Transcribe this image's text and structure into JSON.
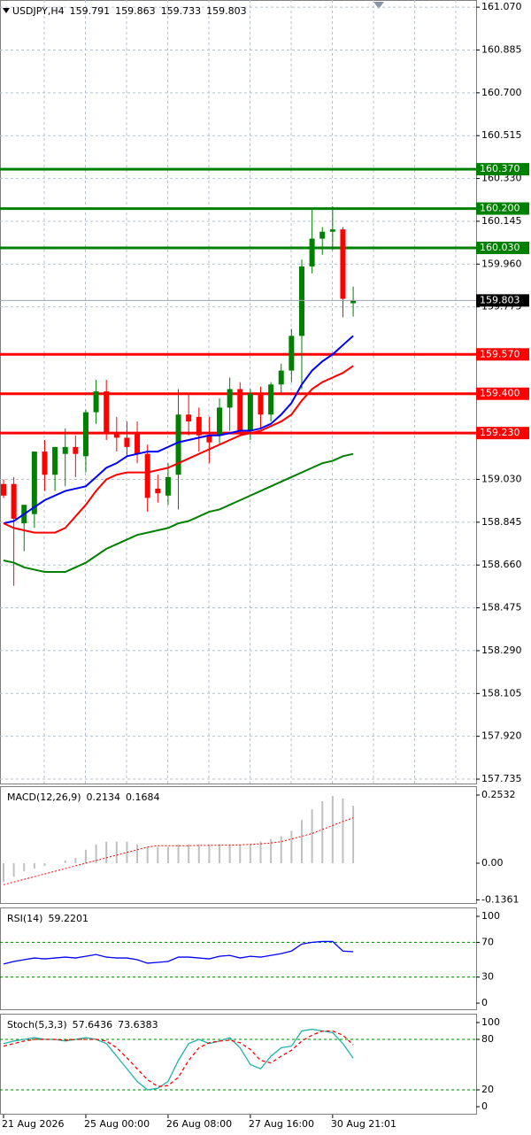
{
  "chart_data": [
    {
      "type": "candlestick",
      "title": "USDJPY,H4",
      "categories": [
        "21 Aug 2026",
        null,
        null,
        null,
        null,
        null,
        null,
        null,
        "25 Aug 00:00",
        null,
        null,
        null,
        null,
        null,
        null,
        null,
        "26 Aug 08:00",
        null,
        null,
        null,
        null,
        null,
        null,
        null,
        "27 Aug 16:00",
        null,
        null,
        null,
        null,
        null,
        null,
        null,
        "30 Aug 21:01",
        null,
        null
      ],
      "open": [
        159.01,
        159.01,
        158.84,
        158.88,
        159.15,
        159.05,
        159.14,
        159.17,
        159.13,
        159.32,
        159.41,
        159.23,
        159.21,
        159.23,
        159.14,
        158.99,
        158.96,
        159.05,
        159.31,
        159.3,
        159.22,
        159.22,
        159.34,
        159.42,
        159.24,
        159.4,
        159.31,
        159.44,
        159.5,
        159.65,
        159.95,
        160.07,
        160.1,
        160.11,
        159.791
      ],
      "high": [
        159.03,
        159.04,
        158.92,
        159.15,
        159.2,
        159.17,
        159.25,
        159.22,
        159.33,
        159.46,
        159.46,
        159.3,
        159.28,
        159.28,
        159.18,
        159.05,
        159.1,
        159.42,
        159.4,
        159.34,
        159.3,
        159.38,
        159.47,
        159.45,
        159.42,
        159.43,
        159.45,
        159.53,
        159.68,
        159.98,
        160.2,
        160.12,
        160.21,
        160.12,
        159.863
      ],
      "low": [
        158.95,
        158.57,
        158.72,
        158.82,
        158.98,
        158.98,
        159.0,
        159.04,
        159.06,
        159.27,
        159.2,
        159.15,
        159.13,
        159.1,
        158.89,
        158.93,
        158.92,
        158.9,
        159.22,
        159.15,
        159.1,
        159.18,
        159.24,
        159.22,
        159.2,
        159.25,
        159.28,
        159.4,
        159.45,
        159.42,
        159.92,
        160.0,
        160.02,
        159.73,
        159.733
      ],
      "close": [
        158.96,
        158.86,
        158.92,
        159.15,
        159.05,
        159.17,
        159.17,
        159.14,
        159.32,
        159.41,
        159.23,
        159.21,
        159.17,
        159.14,
        158.95,
        158.97,
        159.04,
        159.31,
        159.28,
        159.22,
        159.19,
        159.34,
        159.42,
        159.24,
        159.4,
        159.31,
        159.44,
        159.5,
        159.65,
        159.95,
        160.07,
        160.1,
        160.11,
        159.81,
        159.803
      ],
      "up_color": "#008000",
      "down_color": "#ff0000",
      "series": [
        {
          "color": "#0000ff",
          "values": [
            158.84,
            158.85,
            158.88,
            158.91,
            158.94,
            158.96,
            158.98,
            158.99,
            159.0,
            159.04,
            159.08,
            159.1,
            159.13,
            159.14,
            159.15,
            159.15,
            159.17,
            159.19,
            159.2,
            159.21,
            159.22,
            159.22,
            159.23,
            159.24,
            159.24,
            159.25,
            159.27,
            159.31,
            159.36,
            159.44,
            159.5,
            159.54,
            159.57,
            159.61,
            159.65
          ]
        },
        {
          "color": "#ff0000",
          "values": [
            158.84,
            158.82,
            158.81,
            158.8,
            158.8,
            158.8,
            158.82,
            158.87,
            158.92,
            158.98,
            159.03,
            159.05,
            159.06,
            159.06,
            159.06,
            159.07,
            159.08,
            159.1,
            159.12,
            159.14,
            159.16,
            159.18,
            159.2,
            159.22,
            159.23,
            159.24,
            159.26,
            159.28,
            159.31,
            159.37,
            159.42,
            159.45,
            159.47,
            159.49,
            159.52
          ]
        },
        {
          "color": "#008000",
          "values": [
            158.68,
            158.67,
            158.65,
            158.64,
            158.63,
            158.63,
            158.63,
            158.65,
            158.67,
            158.7,
            158.73,
            158.75,
            158.77,
            158.79,
            158.8,
            158.81,
            158.82,
            158.84,
            158.85,
            158.87,
            158.89,
            158.9,
            158.92,
            158.94,
            158.96,
            158.98,
            159.0,
            159.02,
            159.04,
            159.06,
            159.08,
            159.1,
            159.11,
            159.13,
            159.14
          ]
        }
      ],
      "levels": [
        {
          "value": 160.37,
          "label": "160.370",
          "color": "#008000"
        },
        {
          "value": 160.2,
          "label": "160.200",
          "color": "#008000"
        },
        {
          "value": 160.03,
          "label": "160.030",
          "color": "#008000"
        },
        {
          "value": 159.57,
          "label": "159.570",
          "color": "#ff0000"
        },
        {
          "value": 159.4,
          "label": "159.400",
          "color": "#ff0000"
        },
        {
          "value": 159.23,
          "label": "159.230",
          "color": "#ff0000"
        }
      ],
      "ylim": [
        157.716,
        161.101
      ],
      "yticks": [
        {
          "value": 161.07,
          "label": "161.070"
        },
        160.885,
        {
          "value": 160.7,
          "label": "160.700"
        },
        160.515,
        {
          "value": 160.33,
          "label": "160.330"
        },
        160.145,
        {
          "value": 159.96,
          "label": "159.960"
        },
        159.775,
        {
          "value": 159.03,
          "label": "159.030"
        },
        158.845,
        {
          "value": 158.66,
          "label": "158.660"
        },
        158.475,
        {
          "value": 158.29,
          "label": "158.290"
        },
        158.105,
        {
          "value": 157.92,
          "label": "157.920"
        },
        157.735
      ],
      "grid": true
    },
    {
      "type": "macd",
      "title": "MACD(12,26,9)",
      "series": [
        {
          "color": "#c0c0c0",
          "values": [
            -0.07,
            -0.05,
            -0.03,
            -0.02,
            -0.01,
            0.0,
            0.01,
            0.02,
            0.05,
            0.07,
            0.08,
            0.08,
            0.08,
            0.07,
            0.06,
            0.06,
            0.06,
            0.07,
            0.07,
            0.07,
            0.07,
            0.07,
            0.07,
            0.07,
            0.07,
            0.08,
            0.09,
            0.1,
            0.12,
            0.16,
            0.2,
            0.23,
            0.25,
            0.24,
            0.2134
          ]
        },
        {
          "color": "#ff0000",
          "values": [
            -0.08,
            -0.07,
            -0.06,
            -0.05,
            -0.04,
            -0.03,
            -0.02,
            -0.01,
            0.0,
            0.01,
            0.02,
            0.03,
            0.04,
            0.05,
            0.06,
            0.065,
            0.065,
            0.065,
            0.065,
            0.066,
            0.066,
            0.067,
            0.067,
            0.068,
            0.07,
            0.072,
            0.075,
            0.08,
            0.09,
            0.1,
            0.11,
            0.125,
            0.14,
            0.155,
            0.1684
          ]
        }
      ],
      "ylim": [
        -0.148,
        0.286
      ],
      "yticks": [
        0.2532,
        {
          "value": 0,
          "label": "0.00"
        },
        -0.1361
      ]
    },
    {
      "type": "line",
      "title": "RSI(14)",
      "series": [
        {
          "color": "#0000ff",
          "values": [
            45,
            48,
            50,
            52,
            51,
            52,
            53,
            52,
            54,
            56,
            53,
            52,
            52,
            50,
            46,
            47,
            48,
            53,
            53,
            52,
            51,
            54,
            55,
            52,
            54,
            53,
            55,
            57,
            60,
            68,
            70,
            71,
            71,
            60,
            59.2201
          ]
        }
      ],
      "levels": [
        70,
        30
      ],
      "level_color": "#008000",
      "ylim": [
        -7.1,
        110.2
      ],
      "yticks": [
        100,
        70,
        30,
        0
      ]
    },
    {
      "type": "line",
      "title": "Stoch(5,3,3)",
      "series": [
        {
          "color": "#20b2aa",
          "values": [
            75,
            78,
            80,
            82,
            80,
            80,
            78,
            80,
            82,
            80,
            75,
            60,
            45,
            30,
            20,
            22,
            30,
            55,
            75,
            80,
            75,
            78,
            82,
            70,
            50,
            45,
            60,
            70,
            72,
            90,
            92,
            90,
            88,
            75,
            57.6436
          ]
        },
        {
          "color": "#ff0000",
          "dashed": true,
          "values": [
            72,
            75,
            78,
            80,
            80,
            80,
            79,
            80,
            80,
            80,
            78,
            70,
            58,
            45,
            32,
            24,
            25,
            35,
            55,
            70,
            76,
            78,
            79,
            76,
            68,
            55,
            52,
            60,
            67,
            78,
            85,
            90,
            90,
            85,
            73.6383
          ]
        }
      ],
      "levels": [
        80,
        20
      ],
      "level_color": "#008000",
      "ylim": [
        -8.4,
        110.5
      ],
      "yticks": [
        100,
        80,
        20,
        0
      ]
    }
  ]
}
